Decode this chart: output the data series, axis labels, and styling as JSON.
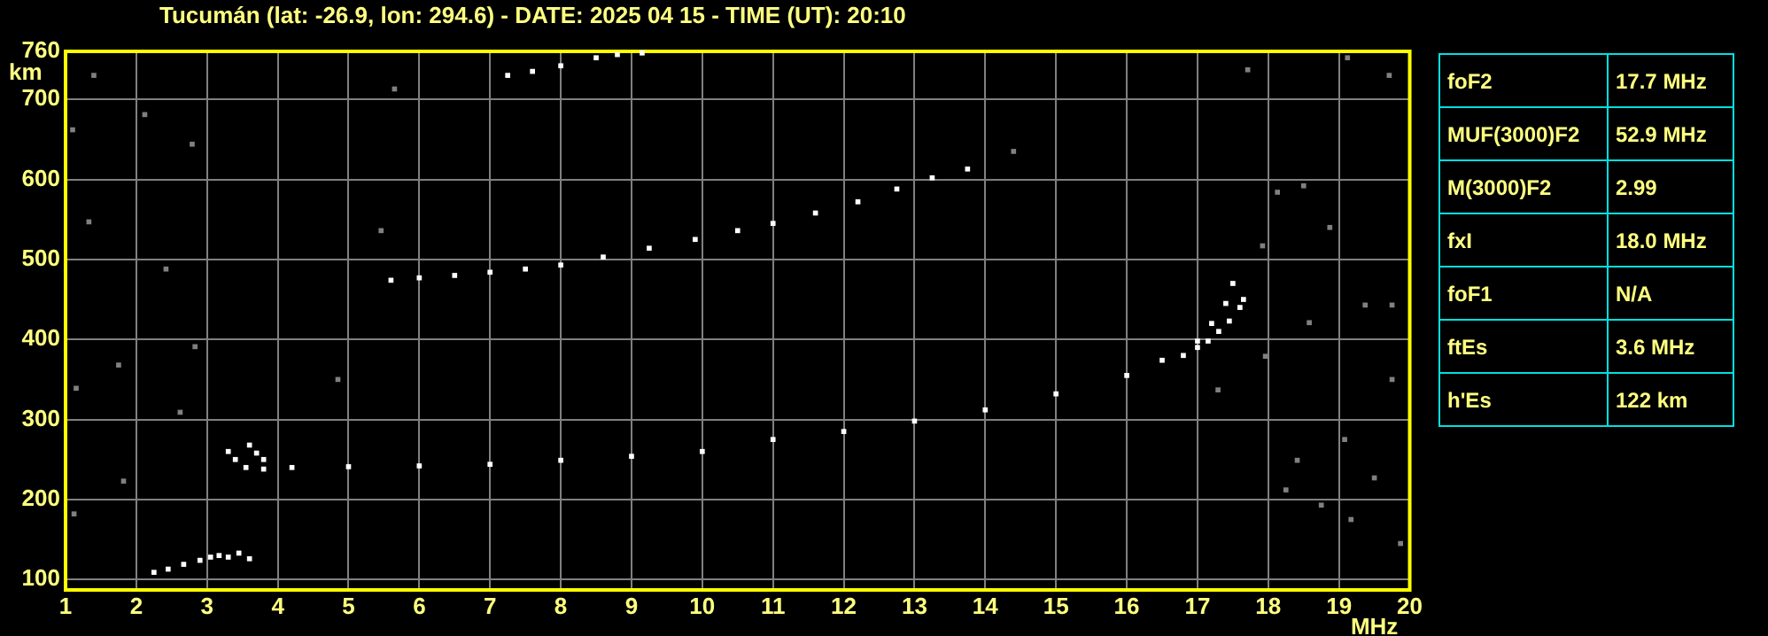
{
  "chart_data": [
    {
      "type": "scatter",
      "title": "Tucumán (lat: -26.9, lon: 294.6) - DATE: 2025 04 15 - TIME (UT): 20:10",
      "xlabel": "MHz",
      "ylabel": "km",
      "xlim": [
        1,
        20
      ],
      "xticks": [
        1,
        2,
        3,
        4,
        5,
        6,
        7,
        8,
        9,
        10,
        11,
        12,
        13,
        14,
        15,
        16,
        17,
        18,
        19,
        20
      ],
      "ylim": [
        87,
        760
      ],
      "yticks": [
        100,
        200,
        300,
        400,
        500,
        600,
        700,
        760
      ],
      "grid": true,
      "legend": false,
      "marker": "square",
      "series": [
        {
          "color": "#ffffff",
          "x": [
            3.3,
            3.4,
            3.55,
            3.8,
            4.2,
            5.0,
            6.0,
            7.0,
            8.0,
            9.0,
            10.0,
            11.0,
            12.0,
            13.0,
            14.0,
            15.0,
            16.0,
            16.5,
            17.0,
            17.2,
            17.4,
            17.5
          ],
          "values": [
            260,
            250,
            240,
            238,
            240,
            241,
            242,
            244,
            249,
            254,
            260,
            275,
            285,
            298,
            312,
            332,
            355,
            374,
            398,
            420,
            445,
            470
          ]
        },
        {
          "color": "#ffffff",
          "x": [
            16.8,
            17.0,
            17.15,
            17.3,
            17.45,
            17.6,
            17.65
          ],
          "values": [
            380,
            390,
            398,
            410,
            423,
            440,
            450
          ]
        },
        {
          "color": "#ffffff",
          "x": [
            3.6,
            3.7,
            3.8
          ],
          "values": [
            268,
            258,
            250
          ]
        },
        {
          "color": "#ffffff",
          "x": [
            5.6,
            6.0,
            6.5,
            7.0,
            7.5,
            8.0,
            8.6,
            9.25,
            9.9,
            10.5,
            11.0,
            11.6,
            12.2,
            12.75,
            13.25,
            13.75
          ],
          "values": [
            474,
            477,
            480,
            484,
            488,
            493,
            503,
            514,
            525,
            536,
            545,
            558,
            572,
            588,
            602,
            613
          ]
        },
        {
          "color": "#ffffff",
          "x": [
            7.25,
            7.6,
            8.0,
            8.5,
            8.8,
            9.15
          ],
          "values": [
            730,
            735,
            742,
            752,
            756,
            758
          ]
        },
        {
          "color": "#ffffff",
          "x": [
            2.25,
            2.45,
            2.67,
            2.9,
            3.05,
            3.17,
            3.3,
            3.45,
            3.6
          ],
          "values": [
            109,
            113,
            119,
            124,
            128,
            130,
            128,
            133,
            126
          ]
        },
        {
          "color": "#808080",
          "x": [
            1.1,
            1.33,
            1.75,
            2.12,
            2.42,
            2.62,
            2.83,
            1.12,
            1.82,
            2.79,
            4.85,
            5.65,
            5.46,
            1.15,
            1.4,
            17.71,
            17.92,
            18.13,
            18.5,
            18.87,
            18.58,
            19.37,
            19.75,
            17.96,
            19.08,
            19.5,
            18.75,
            19.87,
            19.17,
            17.29,
            19.75,
            18.41,
            18.25,
            19.12,
            19.71,
            14.4
          ],
          "values": [
            662,
            547,
            368,
            681,
            488,
            309,
            391,
            182,
            223,
            644,
            350,
            713,
            536,
            339,
            730,
            737,
            517,
            584,
            592,
            540,
            421,
            443,
            443,
            379,
            275,
            227,
            193,
            145,
            175,
            337,
            350,
            249,
            212,
            752,
            730,
            635
          ]
        }
      ]
    },
    {
      "type": "other",
      "annotations": [
        "foF2",
        "17.7 MHz",
        "MUF(3000)F2",
        "52.9 MHz",
        "M(3000)F2",
        "2.99",
        "fxI",
        "18.0 MHz",
        "foF1",
        "N/A",
        "ftEs",
        "3.6 MHz",
        "h'Es",
        "122 km"
      ]
    }
  ]
}
